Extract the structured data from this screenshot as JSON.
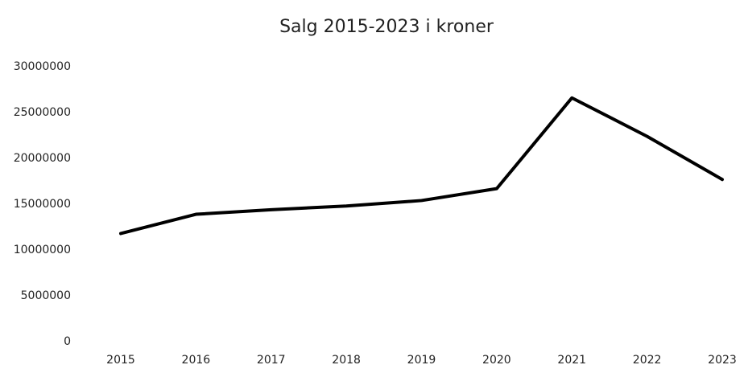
{
  "chart_data": {
    "type": "line",
    "title": "Salg 2015-2023 i kroner",
    "categories": [
      "2015",
      "2016",
      "2017",
      "2018",
      "2019",
      "2020",
      "2021",
      "2022",
      "2023"
    ],
    "series": [
      {
        "name": "Salg",
        "color": "#000000",
        "values": [
          11800000,
          13900000,
          14400000,
          14800000,
          15400000,
          16700000,
          26600000,
          22400000,
          17700000
        ]
      }
    ],
    "ylim": [
      0,
      30000000
    ],
    "yticks": [
      0,
      5000000,
      10000000,
      15000000,
      20000000,
      25000000,
      30000000
    ],
    "grid": false
  }
}
